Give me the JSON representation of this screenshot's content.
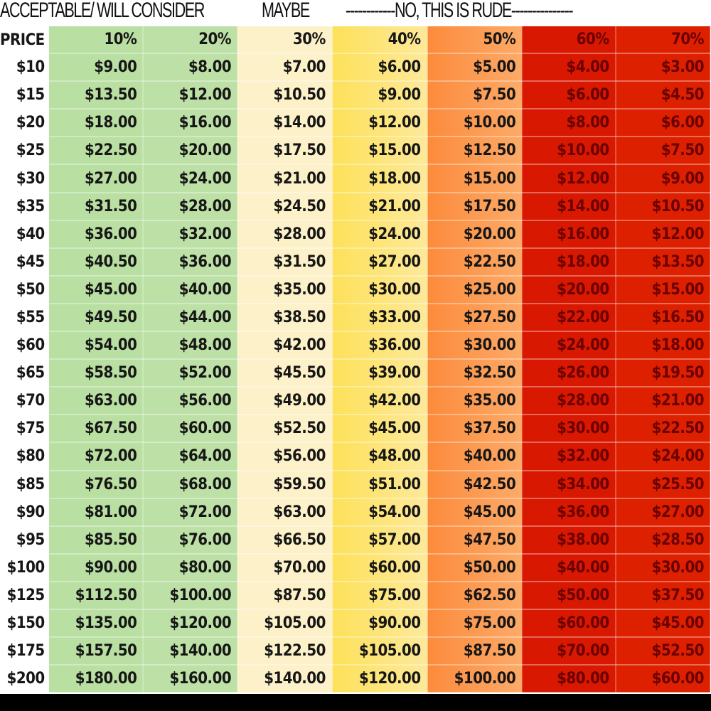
{
  "labels": {
    "acceptable": "ACCEPTABLE/ WILL CONSIDER",
    "maybe": "MAYBE",
    "rude": "------------NO, THIS IS RUDE---------------"
  },
  "colors": {
    "green": "#b9dfa2",
    "pale_yellow": "#fdf1c9",
    "yellow": "#fde15a",
    "orange": "#fc8b3c",
    "red": "#d81800"
  },
  "table": {
    "headers": [
      "PRICE",
      "10%",
      "20%",
      "30%",
      "40%",
      "50%",
      "60%",
      "70%"
    ],
    "rows": [
      [
        "$10",
        "$9.00",
        "$8.00",
        "$7.00",
        "$6.00",
        "$5.00",
        "$4.00",
        "$3.00"
      ],
      [
        "$15",
        "$13.50",
        "$12.00",
        "$10.50",
        "$9.00",
        "$7.50",
        "$6.00",
        "$4.50"
      ],
      [
        "$20",
        "$18.00",
        "$16.00",
        "$14.00",
        "$12.00",
        "$10.00",
        "$8.00",
        "$6.00"
      ],
      [
        "$25",
        "$22.50",
        "$20.00",
        "$17.50",
        "$15.00",
        "$12.50",
        "$10.00",
        "$7.50"
      ],
      [
        "$30",
        "$27.00",
        "$24.00",
        "$21.00",
        "$18.00",
        "$15.00",
        "$12.00",
        "$9.00"
      ],
      [
        "$35",
        "$31.50",
        "$28.00",
        "$24.50",
        "$21.00",
        "$17.50",
        "$14.00",
        "$10.50"
      ],
      [
        "$40",
        "$36.00",
        "$32.00",
        "$28.00",
        "$24.00",
        "$20.00",
        "$16.00",
        "$12.00"
      ],
      [
        "$45",
        "$40.50",
        "$36.00",
        "$31.50",
        "$27.00",
        "$22.50",
        "$18.00",
        "$13.50"
      ],
      [
        "$50",
        "$45.00",
        "$40.00",
        "$35.00",
        "$30.00",
        "$25.00",
        "$20.00",
        "$15.00"
      ],
      [
        "$55",
        "$49.50",
        "$44.00",
        "$38.50",
        "$33.00",
        "$27.50",
        "$22.00",
        "$16.50"
      ],
      [
        "$60",
        "$54.00",
        "$48.00",
        "$42.00",
        "$36.00",
        "$30.00",
        "$24.00",
        "$18.00"
      ],
      [
        "$65",
        "$58.50",
        "$52.00",
        "$45.50",
        "$39.00",
        "$32.50",
        "$26.00",
        "$19.50"
      ],
      [
        "$70",
        "$63.00",
        "$56.00",
        "$49.00",
        "$42.00",
        "$35.00",
        "$28.00",
        "$21.00"
      ],
      [
        "$75",
        "$67.50",
        "$60.00",
        "$52.50",
        "$45.00",
        "$37.50",
        "$30.00",
        "$22.50"
      ],
      [
        "$80",
        "$72.00",
        "$64.00",
        "$56.00",
        "$48.00",
        "$40.00",
        "$32.00",
        "$24.00"
      ],
      [
        "$85",
        "$76.50",
        "$68.00",
        "$59.50",
        "$51.00",
        "$42.50",
        "$34.00",
        "$25.50"
      ],
      [
        "$90",
        "$81.00",
        "$72.00",
        "$63.00",
        "$54.00",
        "$45.00",
        "$36.00",
        "$27.00"
      ],
      [
        "$95",
        "$85.50",
        "$76.00",
        "$66.50",
        "$57.00",
        "$47.50",
        "$38.00",
        "$28.50"
      ],
      [
        "$100",
        "$90.00",
        "$80.00",
        "$70.00",
        "$60.00",
        "$50.00",
        "$40.00",
        "$30.00"
      ],
      [
        "$125",
        "$112.50",
        "$100.00",
        "$87.50",
        "$75.00",
        "$62.50",
        "$50.00",
        "$37.50"
      ],
      [
        "$150",
        "$135.00",
        "$120.00",
        "$105.00",
        "$90.00",
        "$75.00",
        "$60.00",
        "$45.00"
      ],
      [
        "$175",
        "$157.50",
        "$140.00",
        "$122.50",
        "$105.00",
        "$87.50",
        "$70.00",
        "$52.50"
      ],
      [
        "$200",
        "$180.00",
        "$160.00",
        "$140.00",
        "$120.00",
        "$100.00",
        "$80.00",
        "$60.00"
      ]
    ]
  }
}
